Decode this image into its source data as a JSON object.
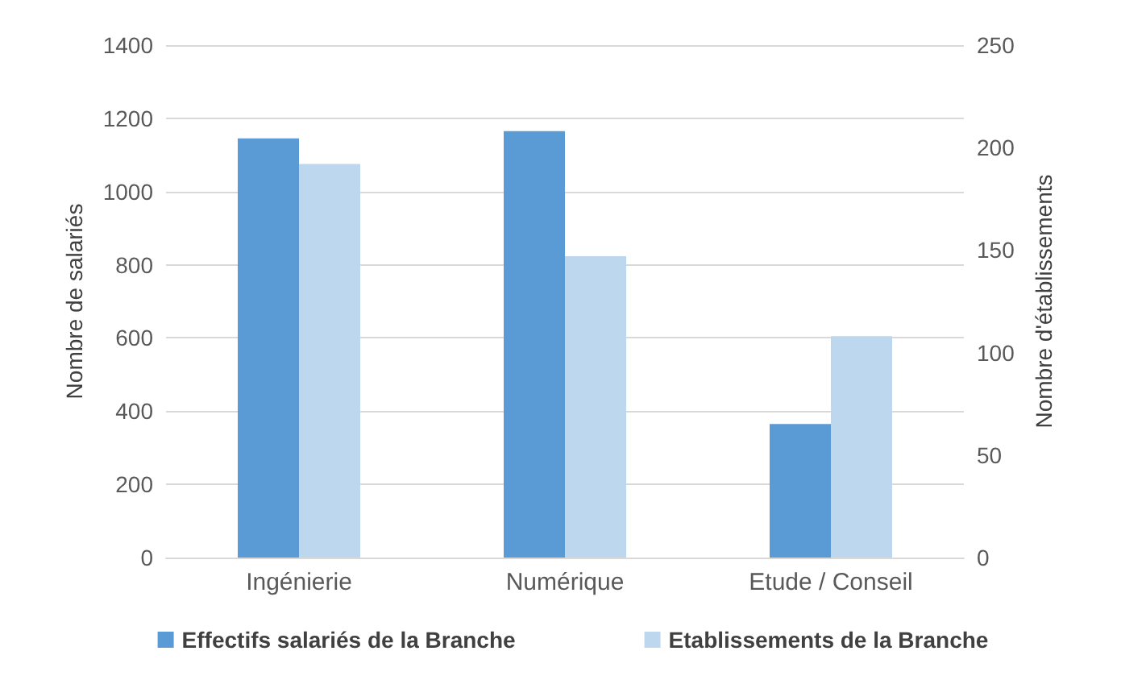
{
  "chart_data": {
    "type": "bar",
    "categories": [
      "Ingénierie",
      "Numérique",
      "Etude / Conseil"
    ],
    "series": [
      {
        "name": "Effectifs salariés de la Branche",
        "color": "#5b9bd5",
        "values": [
          1145,
          1165,
          365
        ]
      },
      {
        "name": "Etablissements de la Branche",
        "color": "#bdd7ee",
        "values": [
          192,
          147,
          108
        ],
        "axis": "y2"
      }
    ],
    "ylabel": "Nombre de salariés",
    "y2label": "Nombre d'établissements",
    "ylim": [
      0,
      1400
    ],
    "yticks": [
      0,
      200,
      400,
      600,
      800,
      1000,
      1200,
      1400
    ],
    "y2lim": [
      0,
      250
    ],
    "y2ticks": [
      0,
      50,
      100,
      150,
      200,
      250
    ],
    "grid": "y",
    "legend": "bottom"
  }
}
